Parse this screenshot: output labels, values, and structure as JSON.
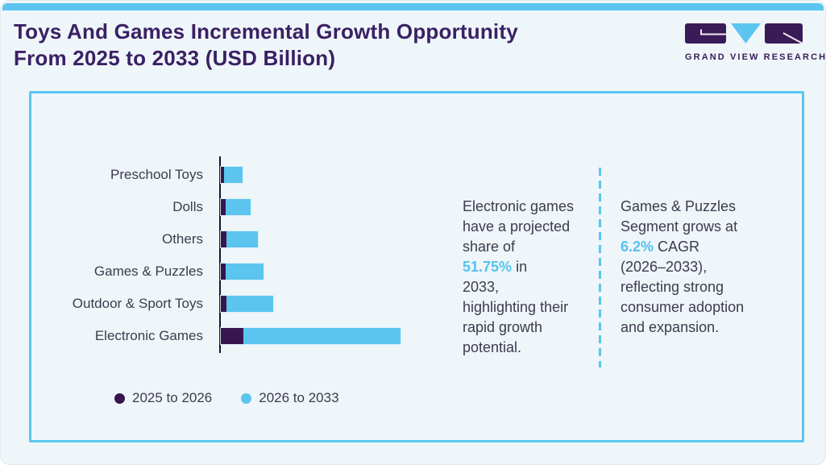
{
  "header": {
    "title_line1": "Toys And Games Incremental Growth Opportunity",
    "title_line2": "From 2025 to 2033 (USD Billion)"
  },
  "brand": {
    "name": "GRAND VIEW RESEARCH"
  },
  "colors": {
    "accent_blue": "#5bc5ef",
    "dark_purple": "#38154f",
    "title_purple": "#3b2064",
    "body_text": "#3f3a4d",
    "card_background": "#eef6fa",
    "highlight_text": "#56c2ee"
  },
  "chart_data": {
    "type": "bar",
    "orientation": "horizontal",
    "stacked": true,
    "title": "Toys And Games Incremental Growth Opportunity From 2025 to 2033 (USD Billion)",
    "xlabel": "",
    "ylabel": "",
    "axis_value_labels_shown": false,
    "grid": false,
    "legend_position": "bottom-left",
    "units": "relative bar length (no numeric axis shown in image)",
    "categories": [
      "Preschool Toys",
      "Dolls",
      "Others",
      "Games & Puzzles",
      "Outdoor & Sport Toys",
      "Electronic Games"
    ],
    "series": [
      {
        "name": "2025 to 2026",
        "color": "#38154f",
        "values": [
          4,
          6,
          7,
          6,
          7,
          28
        ]
      },
      {
        "name": "2026 to 2033",
        "color": "#5bc5ef",
        "values": [
          23,
          31,
          39,
          47,
          58,
          195
        ]
      }
    ]
  },
  "annotations": {
    "left": {
      "before": "Electronic games\nhave a projected\nshare of\n",
      "highlight": "51.75%",
      "after": " in\n2033,\nhighlighting their\nrapid growth\npotential."
    },
    "right": {
      "before": "Games & Puzzles\nSegment grows at\n",
      "highlight": "6.2%",
      "after": " CAGR\n(2026–2033),\nreflecting strong\nconsumer adoption\nand expansion."
    }
  }
}
